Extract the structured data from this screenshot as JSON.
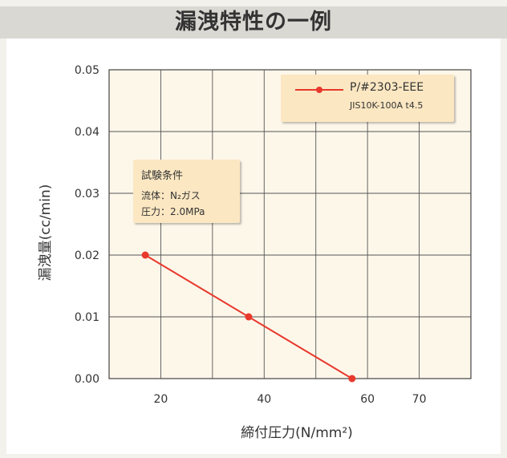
{
  "page": {
    "title": "漏洩特性の一例"
  },
  "conditions": {
    "title": "試験条件",
    "lines": [
      "流体：N₂ガス",
      "圧力：2.0MPa"
    ]
  },
  "chart_data": {
    "type": "line",
    "xlabel": "締付圧力(N/mm²)",
    "ylabel": "漏洩量(cc/min)",
    "xlim": [
      10,
      80
    ],
    "ylim": [
      0,
      0.05
    ],
    "x_ticks": [
      20,
      40,
      60,
      70
    ],
    "x_tick_labels": [
      "20",
      "40",
      "60",
      "70"
    ],
    "y_ticks": [
      0.0,
      0.01,
      0.02,
      0.03,
      0.04,
      0.05
    ],
    "y_tick_labels": [
      "0.00",
      "0.01",
      "0.02",
      "0.03",
      "0.04",
      "0.05"
    ],
    "grid": true,
    "legend_position": "top-right",
    "series": [
      {
        "name": "P/#2303-EEE",
        "subtitle": "JIS10K-100A t4.5",
        "color": "#e8392c",
        "x": [
          17,
          37,
          57
        ],
        "y": [
          0.02,
          0.01,
          0.0
        ]
      }
    ]
  }
}
